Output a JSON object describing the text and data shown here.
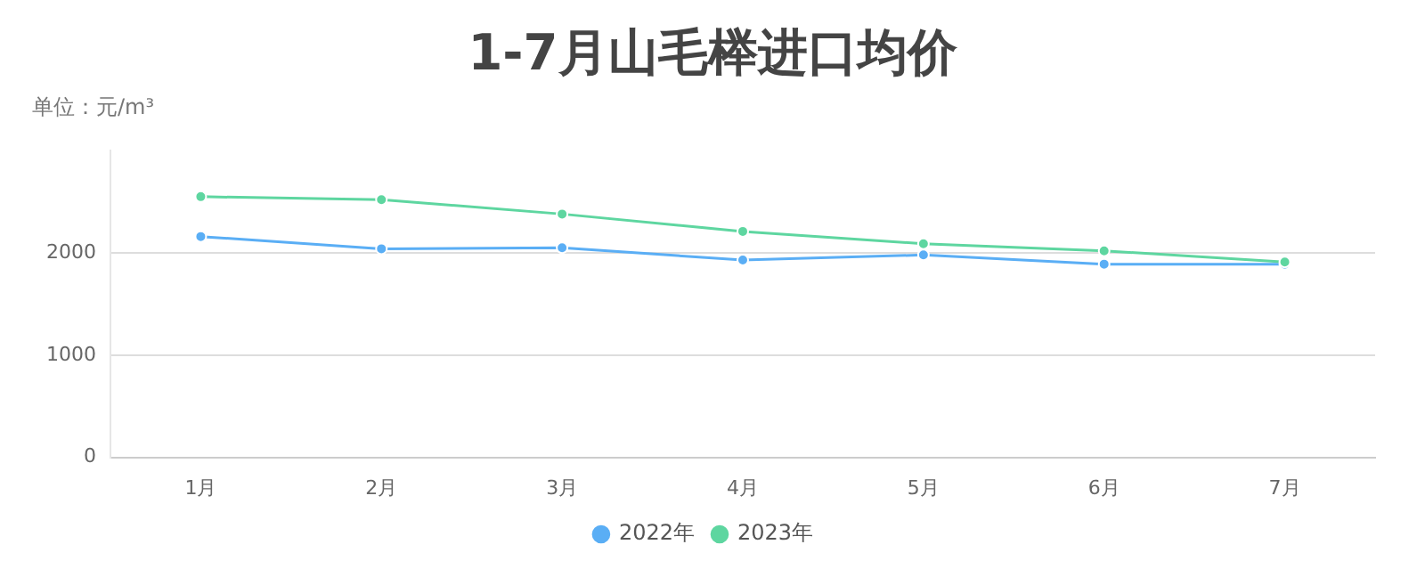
{
  "chart_data": {
    "type": "line",
    "title": "1-7月山毛榉进口均价",
    "subtitle": "单位：元/m³",
    "categories": [
      "1月",
      "2月",
      "3月",
      "4月",
      "5月",
      "6月",
      "7月"
    ],
    "series": [
      {
        "name": "2022年",
        "color": "#5aaef5",
        "values": [
          2160,
          2040,
          2050,
          1930,
          1980,
          1890,
          1890
        ]
      },
      {
        "name": "2023年",
        "color": "#5ed6a0",
        "values": [
          2550,
          2520,
          2380,
          2210,
          2090,
          2020,
          1910
        ]
      }
    ],
    "ylim": [
      0,
      3000
    ],
    "yticks": [
      0,
      1000,
      2000
    ],
    "grid": "y",
    "legend": "bottom",
    "marker": "circle",
    "line_style": "solid"
  }
}
